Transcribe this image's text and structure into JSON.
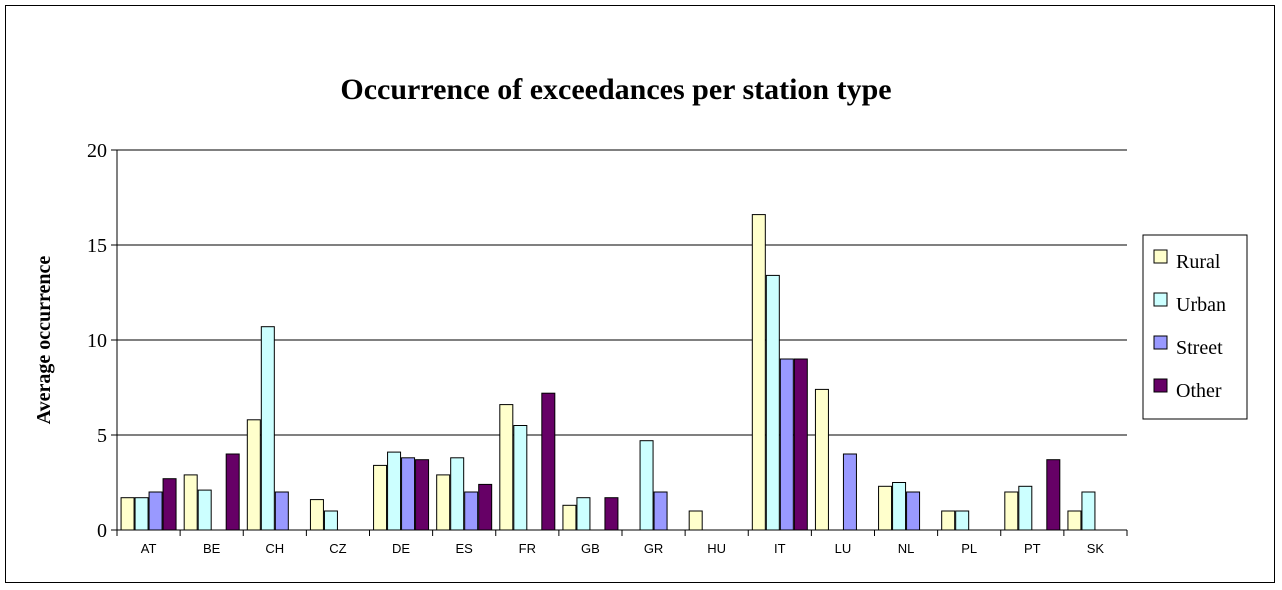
{
  "chart_data": {
    "type": "bar",
    "title": "Occurrence of exceedances per station type",
    "xlabel": "",
    "ylabel": "Average occurrence",
    "ylim": [
      0,
      20
    ],
    "yticks": [
      0,
      5,
      10,
      15,
      20
    ],
    "grid": true,
    "legend_position": "right",
    "categories": [
      "AT",
      "BE",
      "CH",
      "CZ",
      "DE",
      "ES",
      "FR",
      "GB",
      "GR",
      "HU",
      "IT",
      "LU",
      "NL",
      "PL",
      "PT",
      "SK"
    ],
    "series": [
      {
        "name": "Rural",
        "color": "#ffffcc",
        "values": [
          1.7,
          2.9,
          5.8,
          1.6,
          3.4,
          2.9,
          6.6,
          1.3,
          null,
          1.0,
          16.6,
          7.4,
          2.3,
          1.0,
          2.0,
          1.0
        ]
      },
      {
        "name": "Urban",
        "color": "#ccffff",
        "values": [
          1.7,
          2.1,
          10.7,
          1.0,
          4.1,
          3.8,
          5.5,
          1.7,
          4.7,
          null,
          13.4,
          null,
          2.5,
          1.0,
          2.3,
          2.0
        ]
      },
      {
        "name": "Street",
        "color": "#9999ff",
        "values": [
          2.0,
          null,
          2.0,
          null,
          3.8,
          2.0,
          null,
          null,
          2.0,
          null,
          9.0,
          4.0,
          2.0,
          null,
          null,
          null
        ]
      },
      {
        "name": "Other",
        "color": "#660066",
        "values": [
          2.7,
          4.0,
          null,
          null,
          3.7,
          2.4,
          7.2,
          1.7,
          null,
          null,
          9.0,
          null,
          null,
          null,
          3.7,
          null
        ]
      }
    ]
  }
}
